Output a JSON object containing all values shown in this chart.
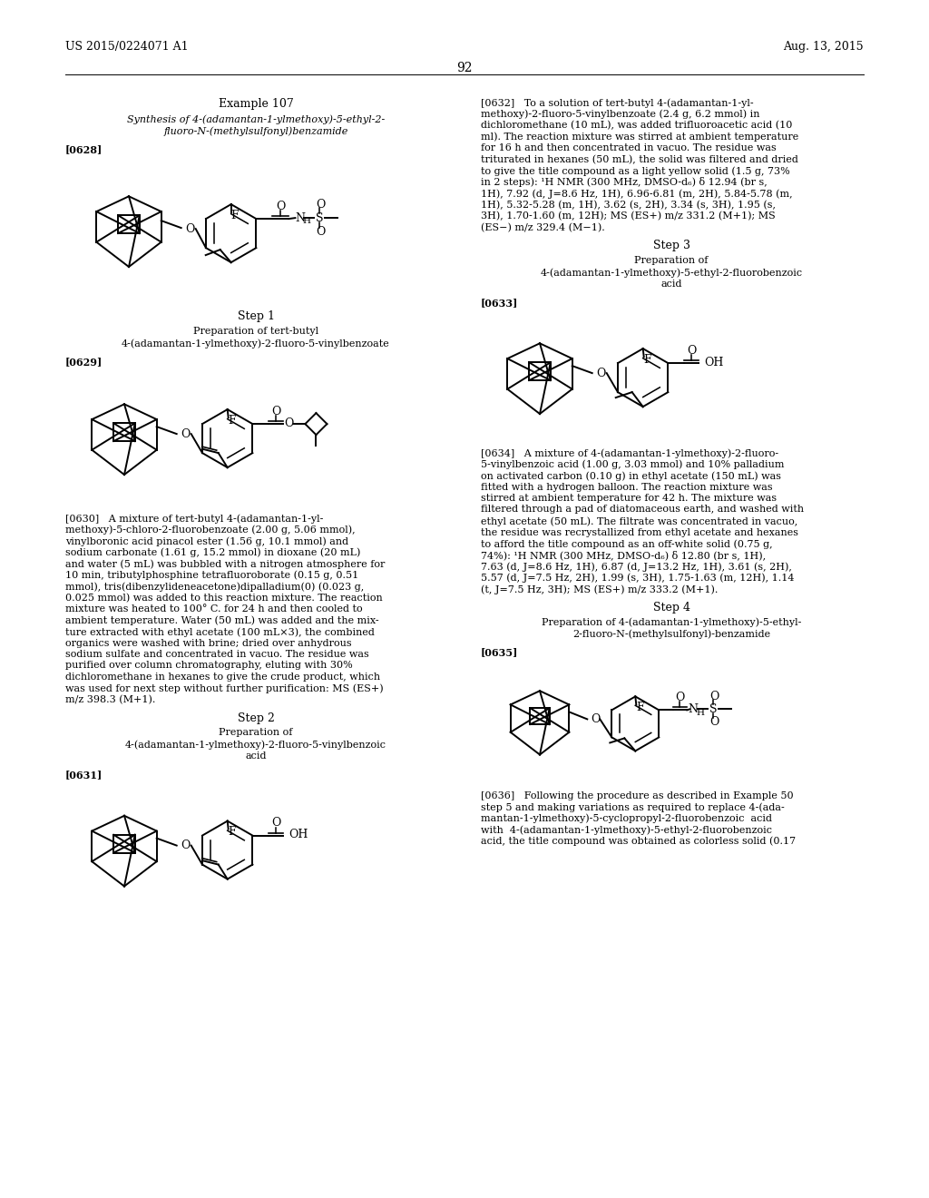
{
  "background_color": "#ffffff",
  "page_header_left": "US 2015/0224071 A1",
  "page_header_right": "Aug. 13, 2015",
  "page_number": "92",
  "left_col": {
    "example_title": "Example 107",
    "example_subtitle1": "Synthesis of 4-(adamantan-1-ylmethoxy)-5-ethyl-2-",
    "example_subtitle2": "fluoro-N-(methylsulfonyl)benzamide",
    "para0628": "[0628]",
    "step1_title": "Step 1",
    "step1_prep1": "Preparation of tert-butyl",
    "step1_prep2": "4-(adamantan-1-ylmethoxy)-2-fluoro-5-vinylbenzoate",
    "para0629": "[0629]",
    "step2_title": "Step 2",
    "step2_prep1": "Preparation of",
    "step2_prep2": "4-(adamantan-1-ylmethoxy)-2-fluoro-5-vinylbenzoic",
    "step2_prep3": "acid",
    "para0631": "[0631]",
    "para0630_lines": [
      "[0630]   A mixture of tert-butyl 4-(adamantan-1-yl-",
      "methoxy)-5-chloro-2-fluorobenzoate (2.00 g, 5.06 mmol),",
      "vinylboronic acid pinacol ester (1.56 g, 10.1 mmol) and",
      "sodium carbonate (1.61 g, 15.2 mmol) in dioxane (20 mL)",
      "and water (5 mL) was bubbled with a nitrogen atmosphere for",
      "10 min, tributylphosphine tetrafluoroborate (0.15 g, 0.51",
      "mmol), tris(dibenzylideneacetone)dipalladium(0) (0.023 g,",
      "0.025 mmol) was added to this reaction mixture. The reaction",
      "mixture was heated to 100° C. for 24 h and then cooled to",
      "ambient temperature. Water (50 mL) was added and the mix-",
      "ture extracted with ethyl acetate (100 mL×3), the combined",
      "organics were washed with brine; dried over anhydrous",
      "sodium sulfate and concentrated in vacuo. The residue was",
      "purified over column chromatography, eluting with 30%",
      "dichloromethane in hexanes to give the crude product, which",
      "was used for next step without further purification: MS (ES+)",
      "m/z 398.3 (M+1)."
    ]
  },
  "right_col": {
    "para0632_lines": [
      "[0632]   To a solution of tert-butyl 4-(adamantan-1-yl-",
      "methoxy)-2-fluoro-5-vinylbenzoate (2.4 g, 6.2 mmol) in",
      "dichloromethane (10 mL), was added trifluoroacetic acid (10",
      "ml). The reaction mixture was stirred at ambient temperature",
      "for 16 h and then concentrated in vacuo. The residue was",
      "triturated in hexanes (50 mL), the solid was filtered and dried",
      "to give the title compound as a light yellow solid (1.5 g, 73%",
      "in 2 steps): ¹H NMR (300 MHz, DMSO-d₆) δ 12.94 (br s,",
      "1H), 7.92 (d, J=8.6 Hz, 1H), 6.96-6.81 (m, 2H), 5.84-5.78 (m,",
      "1H), 5.32-5.28 (m, 1H), 3.62 (s, 2H), 3.34 (s, 3H), 1.95 (s,",
      "3H), 1.70-1.60 (m, 12H); MS (ES+) m/z 331.2 (M+1); MS",
      "(ES−) m/z 329.4 (M−1)."
    ],
    "step3_title": "Step 3",
    "step3_prep1": "Preparation of",
    "step3_prep2": "4-(adamantan-1-ylmethoxy)-5-ethyl-2-fluorobenzoic",
    "step3_prep3": "acid",
    "para0633": "[0633]",
    "para0634_lines": [
      "[0634]   A mixture of 4-(adamantan-1-ylmethoxy)-2-fluoro-",
      "5-vinylbenzoic acid (1.00 g, 3.03 mmol) and 10% palladium",
      "on activated carbon (0.10 g) in ethyl acetate (150 mL) was",
      "fitted with a hydrogen balloon. The reaction mixture was",
      "stirred at ambient temperature for 42 h. The mixture was",
      "filtered through a pad of diatomaceous earth, and washed with",
      "ethyl acetate (50 mL). The filtrate was concentrated in vacuo,",
      "the residue was recrystallized from ethyl acetate and hexanes",
      "to afford the title compound as an off-white solid (0.75 g,",
      "74%): ¹H NMR (300 MHz, DMSO-d₆) δ 12.80 (br s, 1H),",
      "7.63 (d, J=8.6 Hz, 1H), 6.87 (d, J=13.2 Hz, 1H), 3.61 (s, 2H),",
      "5.57 (d, J=7.5 Hz, 2H), 1.99 (s, 3H), 1.75-1.63 (m, 12H), 1.14",
      "(t, J=7.5 Hz, 3H); MS (ES+) m/z 333.2 (M+1)."
    ],
    "step4_title": "Step 4",
    "step4_prep1": "Preparation of 4-(adamantan-1-ylmethoxy)-5-ethyl-",
    "step4_prep2": "2-fluoro-N-(methylsulfonyl)-benzamide",
    "para0635": "[0635]",
    "para0636_lines": [
      "[0636]   Following the procedure as described in Example 50",
      "step 5 and making variations as required to replace 4-(ada-",
      "mantan-1-ylmethoxy)-5-cyclopropyl-2-fluorobenzoic  acid",
      "with  4-(adamantan-1-ylmethoxy)-5-ethyl-2-fluorobenzoic",
      "acid, the title compound was obtained as colorless solid (0.17"
    ]
  }
}
